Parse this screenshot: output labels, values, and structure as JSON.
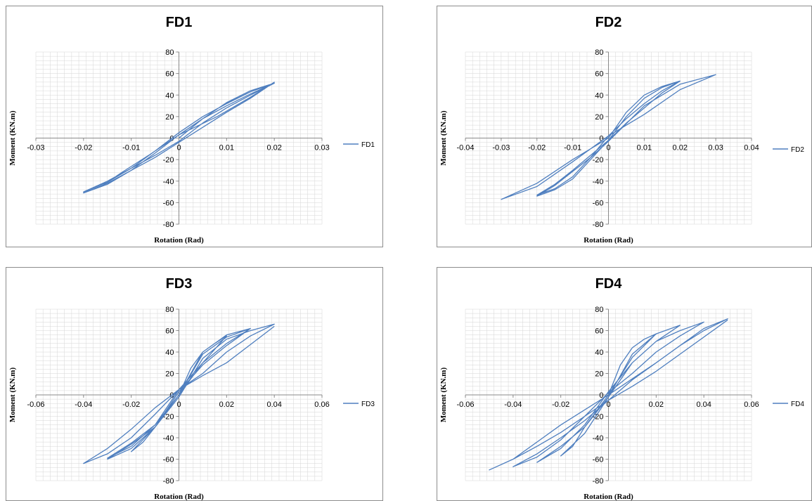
{
  "chart_data": [
    {
      "type": "line",
      "title": "FD1",
      "xlabel": "Rotation (Rad)",
      "ylabel": "Moment (KN.m)",
      "xlim": [
        -0.03,
        0.03
      ],
      "ylim": [
        -80,
        80
      ],
      "xticks": [
        "-0.03",
        "-0.02",
        "-0.01",
        "0",
        "0.01",
        "0.02",
        "0.03"
      ],
      "yticks": [
        "80",
        "60",
        "40",
        "20",
        "0",
        "-20",
        "-40",
        "-60",
        "-80"
      ],
      "grid": true,
      "legend": "right",
      "series": [
        {
          "name": "FD1",
          "x": [
            0,
            0.005,
            0.01,
            0.015,
            0.02,
            0.015,
            0.01,
            0.005,
            0,
            -0.005,
            -0.01,
            -0.015,
            -0.02,
            -0.015,
            -0.01,
            -0.005,
            0,
            0.005,
            0.01,
            0.015,
            0.02,
            0.015,
            0.01,
            0.005,
            0,
            -0.005,
            -0.01,
            -0.015,
            -0.02,
            -0.015,
            -0.01,
            -0.005,
            0,
            0.005,
            0.01,
            0.015,
            0.02,
            0.015,
            0.008,
            0,
            -0.006,
            -0.012,
            -0.016,
            -0.02
          ],
          "y": [
            0,
            18,
            33,
            44,
            51,
            43,
            32,
            20,
            5,
            -12,
            -28,
            -41,
            -50,
            -40,
            -28,
            -16,
            -3,
            14,
            28,
            40,
            51,
            41,
            30,
            18,
            3,
            -14,
            -30,
            -43,
            -51,
            -42,
            -30,
            -18,
            -4,
            10,
            24,
            37,
            52,
            38,
            20,
            3,
            -15,
            -32,
            -44,
            -51
          ]
        }
      ]
    },
    {
      "type": "line",
      "title": "FD2",
      "xlabel": "Rotation (Rad)",
      "ylabel": "Moment (KN.m)",
      "xlim": [
        -0.04,
        0.04
      ],
      "ylim": [
        -80,
        80
      ],
      "xticks": [
        "-0.04",
        "-0.03",
        "-0.02",
        "-0.01",
        "0",
        "0.01",
        "0.02",
        "0.03",
        "0.04"
      ],
      "yticks": [
        "80",
        "60",
        "40",
        "20",
        "0",
        "-20",
        "-40",
        "-60",
        "-80"
      ],
      "grid": true,
      "legend": "right",
      "series": [
        {
          "name": "FD2",
          "x": [
            0,
            0.005,
            0.01,
            0.015,
            0.02,
            0.015,
            0.01,
            0.005,
            0,
            -0.005,
            -0.01,
            -0.015,
            -0.02,
            -0.015,
            -0.01,
            -0.005,
            0,
            0.005,
            0.01,
            0.015,
            0.02,
            0.015,
            0.01,
            0.005,
            0,
            -0.005,
            -0.01,
            -0.015,
            -0.02,
            -0.015,
            -0.01,
            -0.005,
            0,
            0.01,
            0.02,
            0.03,
            0.02,
            0.01,
            0,
            -0.01,
            -0.02,
            -0.03,
            -0.02,
            -0.01,
            0
          ],
          "y": [
            0,
            24,
            40,
            48,
            53,
            44,
            32,
            18,
            2,
            -18,
            -36,
            -47,
            -53,
            -43,
            -30,
            -16,
            -2,
            20,
            37,
            47,
            53,
            42,
            28,
            14,
            -2,
            -20,
            -38,
            -48,
            -54,
            -44,
            -31,
            -18,
            -3,
            30,
            50,
            59,
            45,
            22,
            2,
            -22,
            -45,
            -57,
            -42,
            -20,
            0
          ]
        }
      ]
    },
    {
      "type": "line",
      "title": "FD3",
      "xlabel": "Rotation (Rad)",
      "ylabel": "Moment (KN.m)",
      "xlim": [
        -0.06,
        0.06
      ],
      "ylim": [
        -80,
        80
      ],
      "xticks": [
        "-0.06",
        "-0.04",
        "-0.02",
        "0",
        "0.02",
        "0.04",
        "0.06"
      ],
      "yticks": [
        "80",
        "60",
        "40",
        "20",
        "0",
        "-20",
        "-40",
        "-60",
        "-80"
      ],
      "grid": true,
      "legend": "right",
      "series": [
        {
          "name": "FD3",
          "x": [
            0,
            0.005,
            0.01,
            0.015,
            0.02,
            0.01,
            0,
            -0.01,
            -0.015,
            -0.02,
            -0.01,
            0,
            0.01,
            0.02,
            0.03,
            0.02,
            0.01,
            0,
            -0.01,
            -0.02,
            -0.03,
            -0.02,
            -0.01,
            0,
            0.01,
            0.02,
            0.03,
            0.02,
            0.01,
            0,
            -0.01,
            -0.02,
            -0.03,
            -0.02,
            -0.01,
            0,
            0.01,
            0.02,
            0.03,
            0.04,
            0.03,
            0.02,
            0.01,
            0,
            -0.01,
            -0.02,
            -0.03,
            -0.04,
            -0.03,
            -0.02,
            -0.01,
            0,
            0.01,
            0.02,
            0.04
          ],
          "y": [
            0,
            25,
            40,
            48,
            55,
            30,
            0,
            -30,
            -44,
            -53,
            -30,
            0,
            40,
            56,
            62,
            48,
            30,
            5,
            -28,
            -48,
            -59,
            -45,
            -28,
            0,
            38,
            54,
            62,
            46,
            28,
            3,
            -30,
            -50,
            -60,
            -46,
            -30,
            -2,
            34,
            52,
            60,
            66,
            55,
            40,
            20,
            5,
            -18,
            -40,
            -55,
            -64,
            -50,
            -32,
            -12,
            5,
            18,
            30,
            64
          ]
        }
      ]
    },
    {
      "type": "line",
      "title": "FD4",
      "xlabel": "Rotation (Rad)",
      "ylabel": "Moment (KN.m)",
      "xlim": [
        -0.06,
        0.06
      ],
      "ylim": [
        -80,
        80
      ],
      "xticks": [
        "-0.06",
        "-0.04",
        "-0.02",
        "0",
        "0.02",
        "0.04",
        "0.06"
      ],
      "yticks": [
        "80",
        "60",
        "40",
        "20",
        "0",
        "-20",
        "-40",
        "-60",
        "-80"
      ],
      "grid": true,
      "legend": "right",
      "series": [
        {
          "name": "FD4",
          "x": [
            0,
            0.005,
            0.01,
            0.015,
            0.02,
            0.01,
            0,
            -0.01,
            -0.015,
            -0.02,
            -0.01,
            0,
            0.01,
            0.02,
            0.03,
            0.02,
            0.01,
            0,
            -0.01,
            -0.02,
            -0.03,
            -0.02,
            -0.01,
            0,
            0.01,
            0.02,
            0.03,
            0.04,
            0.03,
            0.02,
            0.01,
            0,
            -0.01,
            -0.02,
            -0.03,
            -0.04,
            -0.03,
            -0.02,
            -0.01,
            0,
            0.01,
            0.02,
            0.03,
            0.04,
            0.05,
            0.04,
            0.03,
            0.02,
            0.01,
            0,
            -0.01,
            -0.02,
            -0.03,
            -0.04,
            -0.05,
            -0.04,
            -0.03,
            -0.02,
            -0.01,
            0,
            0.01,
            0.02,
            0.03,
            0.05
          ],
          "y": [
            0,
            28,
            44,
            52,
            57,
            35,
            0,
            -30,
            -48,
            -57,
            -36,
            -2,
            38,
            57,
            65,
            50,
            30,
            3,
            -28,
            -50,
            -63,
            -48,
            -30,
            -2,
            30,
            50,
            60,
            68,
            55,
            40,
            20,
            2,
            -20,
            -42,
            -58,
            -67,
            -55,
            -40,
            -24,
            -5,
            14,
            30,
            46,
            62,
            71,
            60,
            46,
            30,
            15,
            0,
            -14,
            -28,
            -44,
            -60,
            -70,
            -60,
            -48,
            -35,
            -20,
            -5,
            8,
            22,
            38,
            70
          ]
        }
      ]
    }
  ],
  "colors": {
    "series": "#4f7fbf",
    "grid": "#d6d6d6",
    "axis": "#8a8a8a",
    "border": "#8c8c8c"
  }
}
